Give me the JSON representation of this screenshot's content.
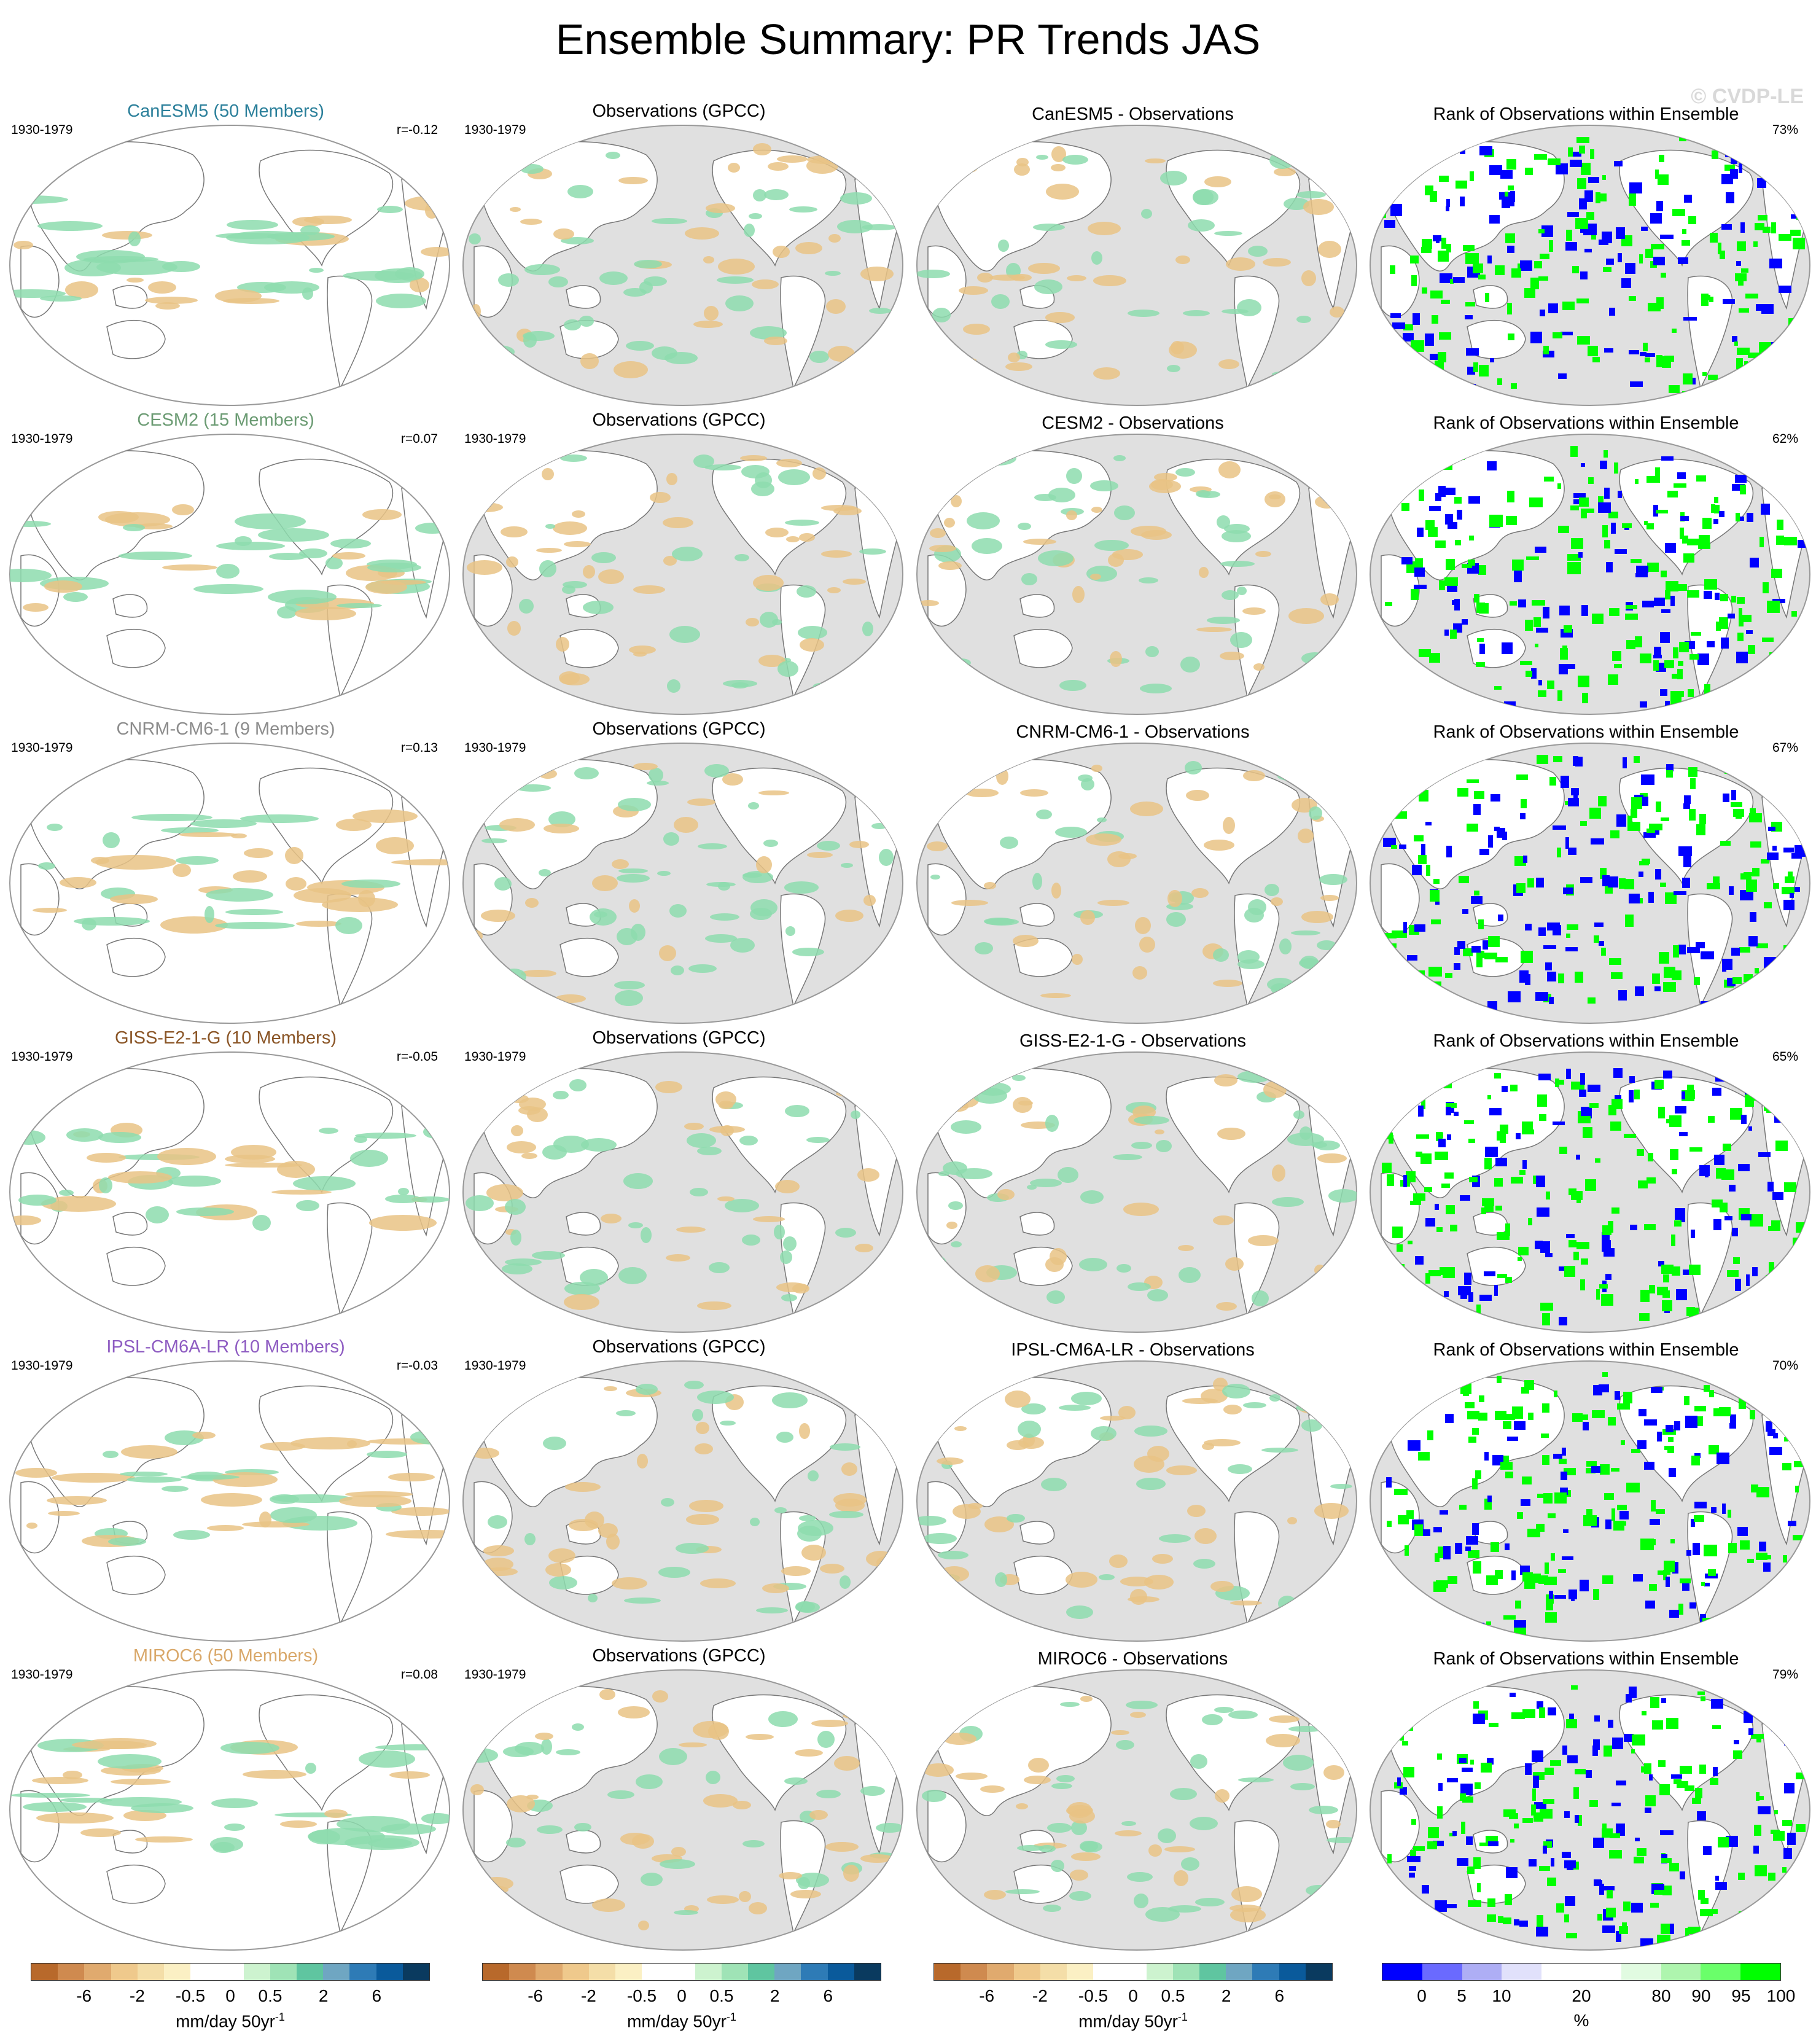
{
  "page": {
    "title": "Ensemble Summary: PR Trends JAS",
    "watermark": "© CVDP-LE"
  },
  "columns": {
    "obs_title": "Observations (GPCC)",
    "rank_title": "Rank of Observations within Ensemble",
    "period": "1930-1979"
  },
  "rows": [
    {
      "model_title": "CanESM5 (50 Members)",
      "model_color": "#2a7f9a",
      "r": "r=-0.12",
      "diff_title": "CanESM5 - Observations",
      "rank_pct": "73%"
    },
    {
      "model_title": "CESM2 (15 Members)",
      "model_color": "#6b9b73",
      "r": "r=0.07",
      "diff_title": "CESM2 - Observations",
      "rank_pct": "62%"
    },
    {
      "model_title": "CNRM-CM6-1 (9 Members)",
      "model_color": "#8c8c8c",
      "r": "r=0.13",
      "diff_title": "CNRM-CM6-1 - Observations",
      "rank_pct": "67%"
    },
    {
      "model_title": "GISS-E2-1-G (10 Members)",
      "model_color": "#8a5526",
      "r": "r=-0.05",
      "diff_title": "GISS-E2-1-G - Observations",
      "rank_pct": "65%"
    },
    {
      "model_title": "IPSL-CM6A-LR (10 Members)",
      "model_color": "#8e5cc2",
      "r": "r=-0.03",
      "diff_title": "IPSL-CM6A-LR - Observations",
      "rank_pct": "70%"
    },
    {
      "model_title": "MIROC6 (50 Members)",
      "model_color": "#d9a86a",
      "r": "r=0.08",
      "diff_title": "MIROC6 - Observations",
      "rank_pct": "79%"
    }
  ],
  "colorbars": {
    "trend": {
      "colors": [
        "#b8692b",
        "#cf8a4f",
        "#e0aa6e",
        "#efc98c",
        "#f4dea8",
        "#fbf0c4",
        "#ffffff",
        "#ffffff",
        "#cdf3cf",
        "#9fe3b6",
        "#5fc5a0",
        "#6fa6c2",
        "#2e7bb6",
        "#0a5a9b",
        "#0a3a5f"
      ],
      "ticks": [
        "-6",
        "-2",
        "-0.5",
        "0",
        "0.5",
        "2",
        "6"
      ],
      "unit": "mm/day 50yr",
      "unit_sup": "-1"
    },
    "rank": {
      "colors": [
        "#0000ff",
        "#6a6aff",
        "#aeaef5",
        "#e1e1fb",
        "#ffffff",
        "#ffffff",
        "#e1fbe1",
        "#aef5ae",
        "#6aff6a",
        "#00ff00"
      ],
      "ticks": [
        "0",
        "5",
        "10",
        "20",
        "80",
        "90",
        "95",
        "100"
      ],
      "unit": "%"
    }
  },
  "map_colors": {
    "ocean_gray": "#e0e0e0",
    "land_white": "#ffffff",
    "coast": "#777777",
    "brown": "#e9c385",
    "green": "#8ddcae",
    "rank_blue": "#0000ff",
    "rank_green": "#00ff00"
  }
}
